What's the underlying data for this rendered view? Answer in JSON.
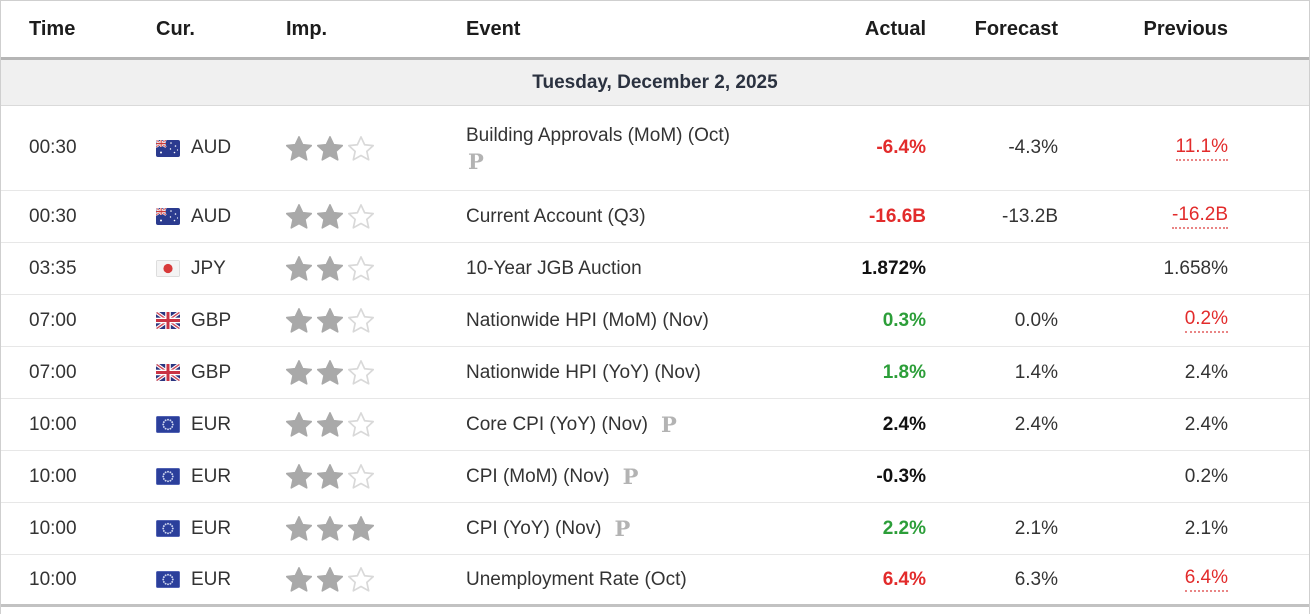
{
  "table": {
    "columns": [
      "Time",
      "Cur.",
      "Imp.",
      "Event",
      "Actual",
      "Forecast",
      "Previous"
    ],
    "date_header": "Tuesday, December 2, 2025",
    "star_filled_color": "#a9a9a9",
    "star_empty_color": "#d9d9d9",
    "value_colors": {
      "red": "#e22b2b",
      "green": "#2c9e39",
      "black": "#111111"
    },
    "rows": [
      {
        "time": "00:30",
        "currency": "AUD",
        "flag_icon": "australia-flag-icon",
        "importance": 2,
        "max_stars": 3,
        "event": "Building Approvals (MoM) (Oct)",
        "preliminary": true,
        "p_position": "below",
        "actual": "-6.4%",
        "actual_color": "red",
        "forecast": "-4.3%",
        "previous": "11.1%",
        "previous_revised": true
      },
      {
        "time": "00:30",
        "currency": "AUD",
        "flag_icon": "australia-flag-icon",
        "importance": 2,
        "max_stars": 3,
        "event": "Current Account (Q3)",
        "preliminary": false,
        "p_position": "none",
        "actual": "-16.6B",
        "actual_color": "red",
        "forecast": "-13.2B",
        "previous": "-16.2B",
        "previous_revised": true
      },
      {
        "time": "03:35",
        "currency": "JPY",
        "flag_icon": "japan-flag-icon",
        "importance": 2,
        "max_stars": 3,
        "event": "10-Year JGB Auction",
        "preliminary": false,
        "p_position": "none",
        "actual": "1.872%",
        "actual_color": "black",
        "forecast": "",
        "previous": "1.658%",
        "previous_revised": false
      },
      {
        "time": "07:00",
        "currency": "GBP",
        "flag_icon": "uk-flag-icon",
        "importance": 2,
        "max_stars": 3,
        "event": "Nationwide HPI (MoM) (Nov)",
        "preliminary": false,
        "p_position": "none",
        "actual": "0.3%",
        "actual_color": "green",
        "forecast": "0.0%",
        "previous": "0.2%",
        "previous_revised": true
      },
      {
        "time": "07:00",
        "currency": "GBP",
        "flag_icon": "uk-flag-icon",
        "importance": 2,
        "max_stars": 3,
        "event": "Nationwide HPI (YoY) (Nov)",
        "preliminary": false,
        "p_position": "none",
        "actual": "1.8%",
        "actual_color": "green",
        "forecast": "1.4%",
        "previous": "2.4%",
        "previous_revised": false
      },
      {
        "time": "10:00",
        "currency": "EUR",
        "flag_icon": "eu-flag-icon",
        "importance": 2,
        "max_stars": 3,
        "event": "Core CPI (YoY) (Nov)",
        "preliminary": true,
        "p_position": "inline",
        "actual": "2.4%",
        "actual_color": "black",
        "forecast": "2.4%",
        "previous": "2.4%",
        "previous_revised": false
      },
      {
        "time": "10:00",
        "currency": "EUR",
        "flag_icon": "eu-flag-icon",
        "importance": 2,
        "max_stars": 3,
        "event": "CPI (MoM) (Nov)",
        "preliminary": true,
        "p_position": "inline",
        "actual": "-0.3%",
        "actual_color": "black",
        "forecast": "",
        "previous": "0.2%",
        "previous_revised": false
      },
      {
        "time": "10:00",
        "currency": "EUR",
        "flag_icon": "eu-flag-icon",
        "importance": 3,
        "max_stars": 3,
        "event": "CPI (YoY) (Nov)",
        "preliminary": true,
        "p_position": "inline",
        "actual": "2.2%",
        "actual_color": "green",
        "forecast": "2.1%",
        "previous": "2.1%",
        "previous_revised": false
      },
      {
        "time": "10:00",
        "currency": "EUR",
        "flag_icon": "eu-flag-icon",
        "importance": 2,
        "max_stars": 3,
        "event": "Unemployment Rate (Oct)",
        "preliminary": false,
        "p_position": "none",
        "actual": "6.4%",
        "actual_color": "red",
        "forecast": "6.3%",
        "previous": "6.4%",
        "previous_revised": true
      }
    ],
    "preliminary_icon_glyph": "P"
  }
}
